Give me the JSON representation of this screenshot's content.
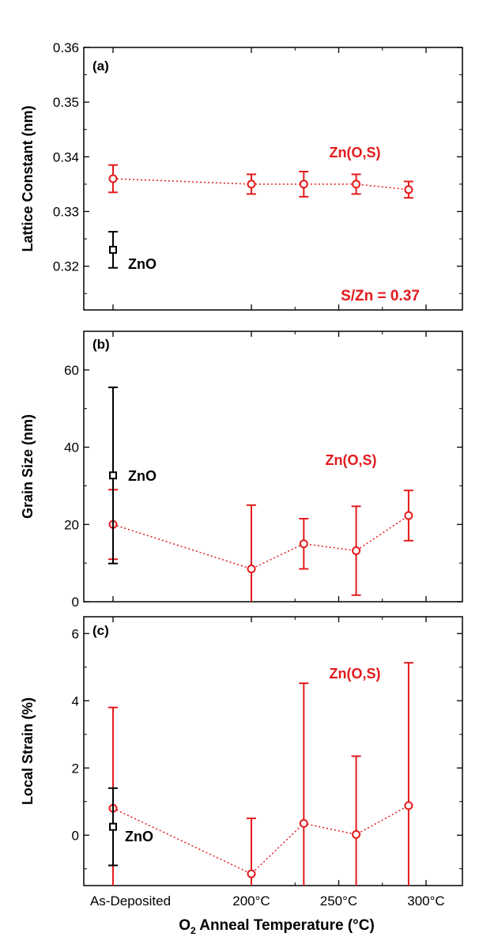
{
  "chart_data": {
    "type": "scatter",
    "x_categories": [
      "As-Deposited",
      "200°C",
      "250°C",
      "300°C"
    ],
    "x_axis_label": "O₂ Anneal Temperature (°C)",
    "colors": {
      "zns": "#e31a1c",
      "zno": "#000000"
    },
    "panels": [
      {
        "id": "a",
        "panel_label": "(a)",
        "ylabel": "Lattice Constant (nm)",
        "ylim": [
          0.312,
          0.36
        ],
        "yticks": [
          0.32,
          0.33,
          0.34,
          0.35,
          0.36
        ],
        "ytick_labels": [
          "0.32",
          "0.33",
          "0.34",
          "0.35",
          "0.36"
        ],
        "series": [
          {
            "name": "Zn(O,S)",
            "style": "circle-dotted",
            "points": [
              {
                "x": "As-Deposited",
                "y": 0.336,
                "err": 0.0025
              },
              {
                "x": 200,
                "y": 0.335,
                "err": 0.0018
              },
              {
                "x": 230,
                "y": 0.335,
                "err": 0.0023
              },
              {
                "x": 260,
                "y": 0.335,
                "err": 0.0018
              },
              {
                "x": 290,
                "y": 0.334,
                "err": 0.0015
              }
            ]
          },
          {
            "name": "ZnO",
            "style": "square",
            "points": [
              {
                "x": "As-Deposited",
                "y": 0.323,
                "err": 0.0033
              }
            ]
          }
        ],
        "annotations": [
          "S/Zn = 0.37"
        ]
      },
      {
        "id": "b",
        "panel_label": "(b)",
        "ylabel": "Grain Size (nm)",
        "ylim": [
          0,
          70
        ],
        "yticks": [
          0,
          20,
          40,
          60
        ],
        "ytick_labels": [
          "0",
          "20",
          "40",
          "60"
        ],
        "series": [
          {
            "name": "Zn(O,S)",
            "style": "circle-dotted",
            "points": [
              {
                "x": "As-Deposited",
                "y": 20,
                "err": 9
              },
              {
                "x": 200,
                "y": 8.5,
                "err": 16.5
              },
              {
                "x": 230,
                "y": 15,
                "err": 6.5
              },
              {
                "x": 260,
                "y": 13.2,
                "err": 11.5
              },
              {
                "x": 290,
                "y": 22.3,
                "err": 6.5
              }
            ]
          },
          {
            "name": "ZnO",
            "style": "square",
            "points": [
              {
                "x": "As-Deposited",
                "y": 32.7,
                "err": 22.8
              }
            ]
          }
        ]
      },
      {
        "id": "c",
        "panel_label": "(c)",
        "ylabel": "Local Strain (%)",
        "ylim": [
          -1.5,
          6.5
        ],
        "yticks": [
          0,
          2,
          4,
          6
        ],
        "ytick_labels": [
          "0",
          "2",
          "4",
          "6"
        ],
        "series": [
          {
            "name": "Zn(O,S)",
            "style": "circle-dotted",
            "points": [
              {
                "x": "As-Deposited",
                "y": 0.8,
                "err": 3.0
              },
              {
                "x": 200,
                "y": -1.15,
                "err": 1.65
              },
              {
                "x": 230,
                "y": 0.35,
                "err": 4.17
              },
              {
                "x": 260,
                "y": 0.02,
                "err": 2.33
              },
              {
                "x": 290,
                "y": 0.88,
                "err": 4.25
              }
            ]
          },
          {
            "name": "ZnO",
            "style": "square",
            "points": [
              {
                "x": "As-Deposited",
                "y": 0.25,
                "err": 1.15
              }
            ]
          }
        ]
      }
    ]
  }
}
